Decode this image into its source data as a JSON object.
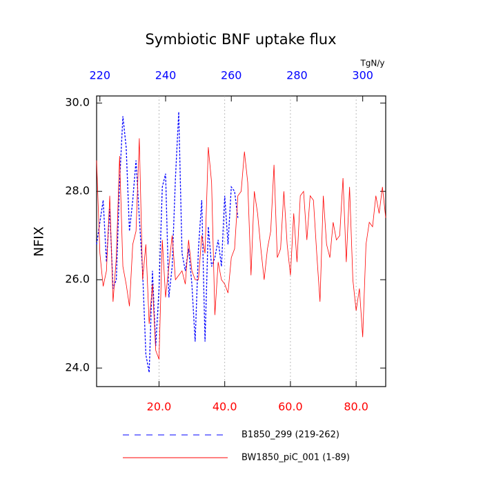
{
  "chart_data": {
    "type": "line",
    "title": "Symbiotic BNF uptake flux",
    "ylabel": "NFIX",
    "x2label": "TgN/y",
    "xlim": [
      1,
      89
    ],
    "xticks": [
      {
        "value": 20,
        "label": "20.0"
      },
      {
        "value": 40,
        "label": "40.0"
      },
      {
        "value": 60,
        "label": "60.0"
      },
      {
        "value": 80,
        "label": "80.0"
      }
    ],
    "xtick_color": "#ff0000",
    "x2lim": [
      219,
      307
    ],
    "x2ticks": [
      220,
      240,
      260,
      280,
      300
    ],
    "x2tick_color": "#0000ff",
    "ylim": [
      23.58,
      30.16
    ],
    "yticks": [
      {
        "value": 24,
        "label": "24.0"
      },
      {
        "value": 26,
        "label": "26.0"
      },
      {
        "value": 28,
        "label": "28.0"
      },
      {
        "value": 30,
        "label": "30.0"
      }
    ],
    "xgrid": true,
    "series": [
      {
        "name": "B1850_299 (219-262)",
        "color": "#0000ff",
        "dashed": true,
        "axis": "x2",
        "x": [
          219,
          220,
          221,
          222,
          223,
          224,
          225,
          226,
          227,
          228,
          229,
          230,
          231,
          232,
          233,
          234,
          235,
          236,
          237,
          238,
          239,
          240,
          241,
          242,
          243,
          244,
          245,
          246,
          247,
          248,
          249,
          250,
          251,
          252,
          253,
          254,
          255,
          256,
          257,
          258,
          259,
          260,
          261,
          262
        ],
        "values": [
          26.8,
          27.3,
          27.8,
          26.4,
          27.6,
          25.8,
          26.0,
          28.2,
          29.7,
          29.0,
          27.1,
          27.8,
          28.7,
          27.4,
          26.2,
          24.3,
          23.9,
          26.2,
          24.5,
          25.8,
          28.1,
          28.4,
          25.6,
          26.3,
          28.3,
          29.8,
          26.6,
          26.2,
          26.7,
          25.9,
          24.6,
          26.7,
          27.8,
          24.6,
          27.2,
          26.3,
          26.5,
          26.9,
          26.3,
          27.9,
          26.8,
          28.1,
          28.0,
          27.4
        ]
      },
      {
        "name": "BW1850_piC_001 (1-89)",
        "color": "#ff0000",
        "dashed": false,
        "axis": "x",
        "x": [
          1,
          2,
          3,
          4,
          5,
          6,
          7,
          8,
          9,
          10,
          11,
          12,
          13,
          14,
          15,
          16,
          17,
          18,
          19,
          20,
          21,
          22,
          23,
          24,
          25,
          26,
          27,
          28,
          29,
          30,
          31,
          32,
          33,
          34,
          35,
          36,
          37,
          38,
          39,
          40,
          41,
          42,
          43,
          44,
          45,
          46,
          47,
          48,
          49,
          50,
          51,
          52,
          53,
          54,
          55,
          56,
          57,
          58,
          59,
          60,
          61,
          62,
          63,
          64,
          65,
          66,
          67,
          68,
          69,
          70,
          71,
          72,
          73,
          74,
          75,
          76,
          77,
          78,
          79,
          80,
          81,
          82,
          83,
          84,
          85,
          86,
          87,
          88,
          89
        ],
        "values": [
          28.7,
          26.6,
          25.85,
          26.2,
          27.9,
          25.5,
          26.5,
          28.8,
          26.3,
          25.9,
          25.4,
          26.8,
          27.1,
          29.2,
          26.0,
          26.8,
          25.0,
          25.9,
          24.4,
          24.2,
          26.9,
          25.6,
          26.3,
          27.0,
          26.0,
          26.1,
          26.2,
          25.9,
          26.9,
          26.2,
          26.0,
          26.0,
          27.0,
          26.6,
          29.0,
          28.2,
          25.2,
          26.4,
          26.0,
          25.9,
          25.7,
          26.5,
          26.7,
          27.9,
          28.0,
          28.9,
          28.2,
          26.1,
          28.0,
          27.5,
          26.7,
          26.0,
          26.7,
          27.1,
          28.6,
          26.5,
          26.7,
          28.0,
          26.8,
          26.1,
          27.5,
          26.4,
          27.9,
          28.0,
          26.9,
          27.9,
          27.8,
          26.6,
          25.5,
          27.9,
          26.8,
          26.5,
          27.3,
          26.9,
          27.0,
          28.3,
          26.4,
          28.1,
          26.0,
          25.3,
          25.8,
          24.7,
          26.8,
          27.3,
          27.2,
          27.9,
          27.5,
          28.1,
          27.4
        ]
      }
    ]
  }
}
